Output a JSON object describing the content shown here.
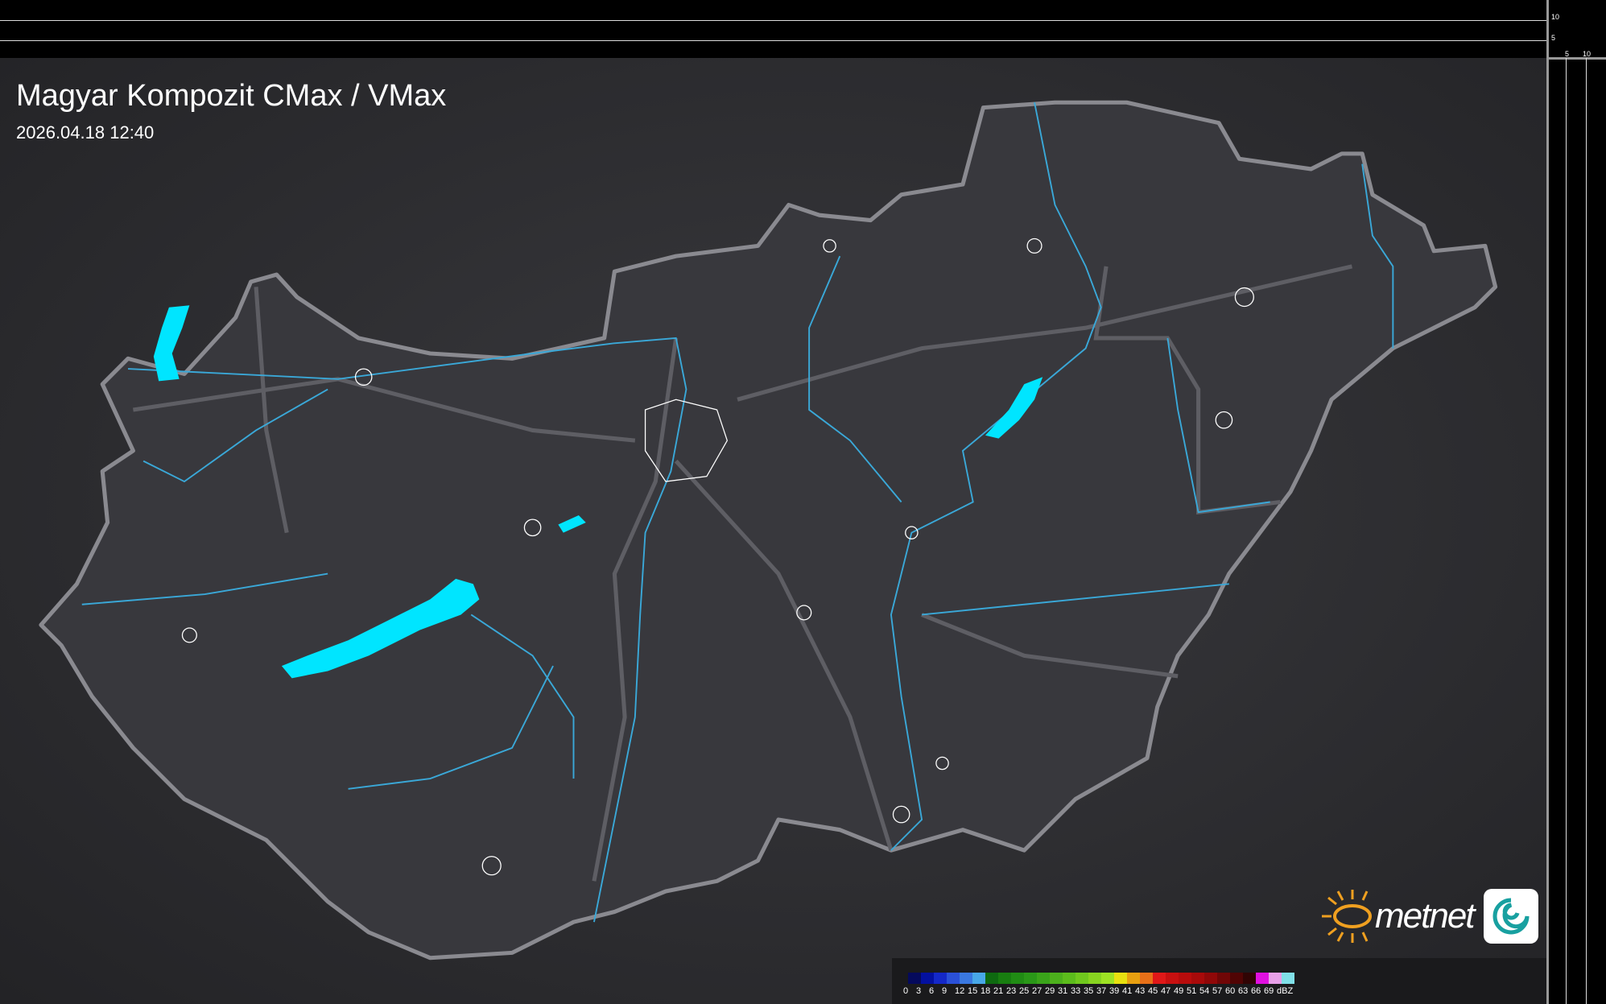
{
  "title": "Magyar Kompozit CMax / VMax",
  "timestamp": "2026.04.18 12:40",
  "profile_axes": {
    "right_ticks": [
      "10",
      "5"
    ],
    "bottom_ticks": [
      "5",
      "10"
    ]
  },
  "logo": {
    "brand": "metnet"
  },
  "legend": {
    "unit": "dBZ",
    "labels": [
      "0",
      "3",
      "6",
      "9",
      "12",
      "15",
      "18",
      "21",
      "23",
      "25",
      "27",
      "29",
      "31",
      "33",
      "35",
      "37",
      "39",
      "41",
      "43",
      "45",
      "47",
      "49",
      "51",
      "54",
      "57",
      "60",
      "63",
      "66",
      "69"
    ],
    "colors": [
      "#050a5c",
      "#0310a0",
      "#1428c8",
      "#2a50d8",
      "#3a78e0",
      "#48a8e8",
      "#0e6a10",
      "#187e10",
      "#208c14",
      "#2a9818",
      "#3aa41a",
      "#4cb01c",
      "#5cbc1c",
      "#70c81e",
      "#88d420",
      "#9ee224",
      "#e8e010",
      "#e8a010",
      "#e87018",
      "#e01818",
      "#c81010",
      "#b80c0c",
      "#a80a0a",
      "#900808",
      "#700606",
      "#500404",
      "#300404",
      "#e010e0",
      "#e8a0e8",
      "#80e0e8"
    ]
  },
  "colors": {
    "water": "#00e5ff",
    "rivers": "#3aa8d8",
    "border": "#7a7a80",
    "background": "#2e2e32"
  }
}
